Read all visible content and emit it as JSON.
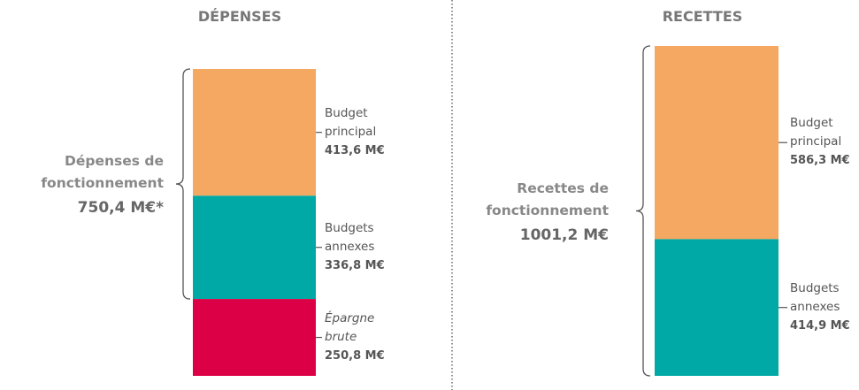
{
  "chart_data": [
    {
      "type": "stacked-bar",
      "title": "DÉPENSES",
      "series": [
        {
          "name": "Budget principal",
          "color": "#f4a862",
          "values": [
            413.6
          ],
          "value_labels": [
            "413,6 M€"
          ]
        },
        {
          "name": "Budgets annexes",
          "color": "#00a9a5",
          "values": [
            336.8
          ],
          "value_labels": [
            "336,8 M€"
          ]
        },
        {
          "name": "Épargne brute",
          "color": "#dc0046",
          "values": [
            250.8
          ],
          "value_labels": [
            "250,8 M€"
          ],
          "italic": true
        }
      ],
      "annotations": [
        {
          "text": "Dépenses de fonctionnement",
          "value": "750,4 M€*",
          "spans": [
            0,
            1
          ]
        }
      ]
    },
    {
      "type": "stacked-bar",
      "title": "RECETTES",
      "series": [
        {
          "name": "Budget principal",
          "color": "#f4a862",
          "values": [
            586.3
          ],
          "value_labels": [
            "586,3 M€"
          ]
        },
        {
          "name": "Budgets annexes",
          "color": "#00a9a5",
          "values": [
            414.9
          ],
          "value_labels": [
            "414,9 M€"
          ]
        }
      ],
      "annotations": [
        {
          "text": "Recettes de fonctionnement",
          "value": "1001,2 M€",
          "spans": [
            0,
            1
          ]
        }
      ]
    }
  ]
}
